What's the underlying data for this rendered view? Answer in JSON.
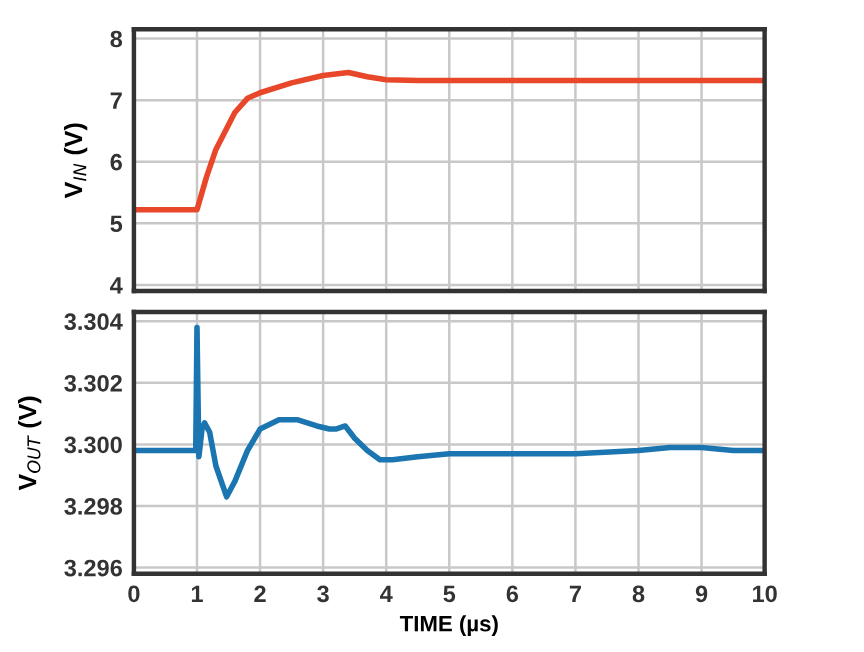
{
  "chart_data": [
    {
      "type": "line",
      "ylabel": "V$_{IN}$ (V)",
      "tick_labels": "y",
      "grid": true,
      "xlim": [
        0,
        10
      ],
      "xticks": [
        0,
        1,
        2,
        3,
        4,
        5,
        6,
        7,
        8,
        9,
        10
      ],
      "ylim": [
        3.9,
        8.15
      ],
      "yticks": [
        4,
        5,
        6,
        7,
        8
      ],
      "series": [
        {
          "color": "#e8472a",
          "x": [
            0,
            1.0,
            1.15,
            1.3,
            1.45,
            1.6,
            1.8,
            2.0,
            2.5,
            3.0,
            3.4,
            3.7,
            4.0,
            4.5,
            10
          ],
          "values": [
            5.22,
            5.22,
            5.75,
            6.2,
            6.5,
            6.8,
            7.03,
            7.12,
            7.28,
            7.4,
            7.45,
            7.38,
            7.33,
            7.32,
            7.32
          ]
        }
      ]
    },
    {
      "type": "line",
      "ylabel": "V$_{OUT}$ (V)",
      "xlabel": "TIME (µs)",
      "grid": true,
      "xlim": [
        0,
        10
      ],
      "xticks": [
        0,
        1,
        2,
        3,
        4,
        5,
        6,
        7,
        8,
        9,
        10
      ],
      "ylim": [
        3.2958,
        3.3043
      ],
      "yticks": [
        {
          "value": 3.296,
          "label": "3.296"
        },
        {
          "value": 3.298,
          "label": "3.298"
        },
        {
          "value": 3.3,
          "label": "3.300"
        },
        {
          "value": 3.302,
          "label": "3.302"
        },
        {
          "value": 3.304,
          "label": "3.304"
        }
      ],
      "series": [
        {
          "color": "#1a75b0",
          "x": [
            0,
            0.98,
            1.0,
            1.03,
            1.08,
            1.12,
            1.2,
            1.3,
            1.47,
            1.6,
            1.8,
            2.0,
            2.3,
            2.6,
            2.9,
            3.1,
            3.2,
            3.35,
            3.5,
            3.7,
            3.9,
            4.1,
            4.5,
            5,
            6,
            7,
            8,
            8.5,
            9,
            9.5,
            10
          ],
          "values": [
            3.2998,
            3.2998,
            3.3038,
            3.2996,
            3.3005,
            3.3007,
            3.3004,
            3.2993,
            3.2983,
            3.2988,
            3.2998,
            3.3005,
            3.3008,
            3.3008,
            3.3006,
            3.3005,
            3.3005,
            3.3006,
            3.3002,
            3.2998,
            3.2995,
            3.2995,
            3.2996,
            3.2997,
            3.2997,
            3.2997,
            3.2998,
            3.2999,
            3.2999,
            3.2998,
            3.2998
          ]
        }
      ]
    }
  ]
}
